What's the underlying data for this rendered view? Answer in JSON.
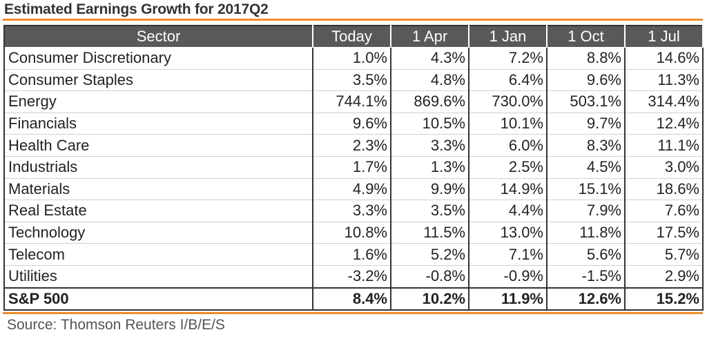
{
  "title": "Estimated Earnings Growth for  2017Q2",
  "source": "Source: Thomson Reuters I/B/E/S",
  "colors": {
    "header_bg": "#595959",
    "header_text": "#ffffff",
    "accent_rule": "#f28c28",
    "border": "#333333"
  },
  "chart_data": {
    "type": "table",
    "title": "Estimated Earnings Growth for  2017Q2",
    "columns": [
      "Sector",
      "Today",
      "1 Apr",
      "1 Jan",
      "1 Oct",
      "1 Jul"
    ],
    "rows": [
      {
        "sector": "Consumer Discretionary",
        "values": [
          "1.0%",
          "4.3%",
          "7.2%",
          "8.8%",
          "14.6%"
        ]
      },
      {
        "sector": "Consumer Staples",
        "values": [
          "3.5%",
          "4.8%",
          "6.4%",
          "9.6%",
          "11.3%"
        ]
      },
      {
        "sector": "Energy",
        "values": [
          "744.1%",
          "869.6%",
          "730.0%",
          "503.1%",
          "314.4%"
        ]
      },
      {
        "sector": "Financials",
        "values": [
          "9.6%",
          "10.5%",
          "10.1%",
          "9.7%",
          "12.4%"
        ]
      },
      {
        "sector": "Health Care",
        "values": [
          "2.3%",
          "3.3%",
          "6.0%",
          "8.3%",
          "11.1%"
        ]
      },
      {
        "sector": "Industrials",
        "values": [
          "1.7%",
          "1.3%",
          "2.5%",
          "4.5%",
          "3.0%"
        ]
      },
      {
        "sector": "Materials",
        "values": [
          "4.9%",
          "9.9%",
          "14.9%",
          "15.1%",
          "18.6%"
        ]
      },
      {
        "sector": "Real Estate",
        "values": [
          "3.3%",
          "3.5%",
          "4.4%",
          "7.9%",
          "7.6%"
        ]
      },
      {
        "sector": "Technology",
        "values": [
          "10.8%",
          "11.5%",
          "13.0%",
          "11.8%",
          "17.5%"
        ]
      },
      {
        "sector": "Telecom",
        "values": [
          "1.6%",
          "5.2%",
          "7.1%",
          "5.6%",
          "5.7%"
        ]
      },
      {
        "sector": "Utilities",
        "values": [
          "-3.2%",
          "-0.8%",
          "-0.9%",
          "-1.5%",
          "2.9%"
        ]
      }
    ],
    "total": {
      "sector": "S&P 500",
      "values": [
        "8.4%",
        "10.2%",
        "11.9%",
        "12.6%",
        "15.2%"
      ]
    }
  }
}
